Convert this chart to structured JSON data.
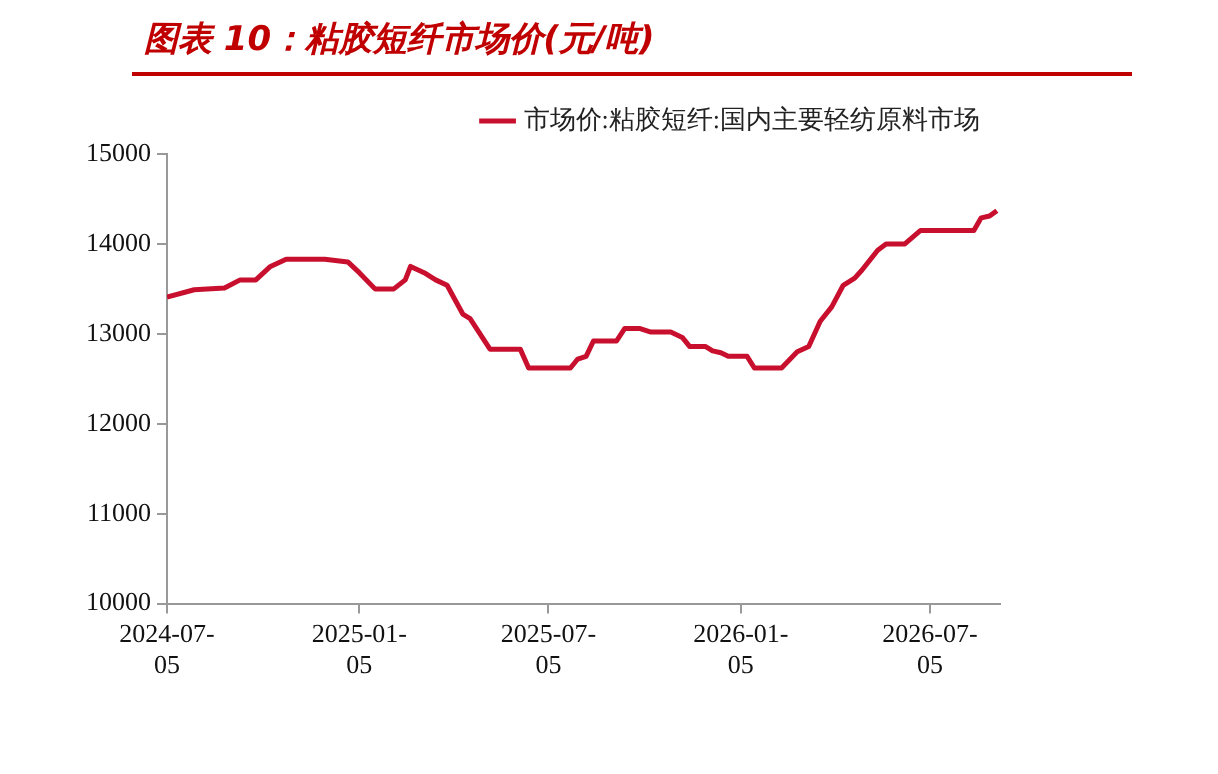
{
  "chart_data": {
    "type": "line",
    "title": "图表 10：粘胶短纤市场价(元/吨)",
    "x": [
      "2024-07-05",
      "2024-07-31",
      "2024-08-29",
      "2024-09-13",
      "2024-09-28",
      "2024-10-12",
      "2024-10-27",
      "2024-12-03",
      "2024-12-25",
      "2025-01-05",
      "2025-01-20",
      "2025-02-07",
      "2025-02-18",
      "2025-02-23",
      "2025-03-08",
      "2025-03-19",
      "2025-03-30",
      "2025-04-14",
      "2025-04-21",
      "2025-05-10",
      "2025-06-08",
      "2025-06-16",
      "2025-07-26",
      "2025-08-02",
      "2025-08-10",
      "2025-08-17",
      "2025-09-08",
      "2025-09-16",
      "2025-09-30",
      "2025-10-11",
      "2025-10-30",
      "2025-11-10",
      "2025-11-17",
      "2025-12-02",
      "2025-12-09",
      "2025-12-17",
      "2025-12-24",
      "2026-01-11",
      "2026-01-18",
      "2026-02-13",
      "2026-02-28",
      "2026-03-11",
      "2026-03-22",
      "2026-04-02",
      "2026-04-13",
      "2026-04-24",
      "2026-05-01",
      "2026-05-16",
      "2026-05-24",
      "2026-06-11",
      "2026-06-26",
      "2026-08-16",
      "2026-08-23",
      "2026-08-31",
      "2026-09-07"
    ],
    "series": [
      {
        "name": "市场价:粘胶短纤:国内主要轻纺原料市场",
        "color": "#c8102e",
        "values": [
          13410,
          13490,
          13510,
          13600,
          13600,
          13750,
          13830,
          13830,
          13800,
          13680,
          13500,
          13500,
          13600,
          13750,
          13680,
          13600,
          13540,
          13220,
          13170,
          12830,
          12830,
          12620,
          12620,
          12720,
          12750,
          12920,
          12920,
          13060,
          13060,
          13020,
          13020,
          12960,
          12860,
          12860,
          12810,
          12790,
          12750,
          12750,
          12620,
          12620,
          12800,
          12860,
          13140,
          13300,
          13540,
          13620,
          13710,
          13930,
          14000,
          14000,
          14150,
          14150,
          14290,
          14310,
          14370
        ]
      }
    ],
    "xlim": [
      "2024-07-05",
      "2026-09-10"
    ],
    "xticks": [
      "2024-07-05",
      "2025-01-05",
      "2025-07-05",
      "2026-01-05",
      "2026-07-05"
    ],
    "ylim": [
      10000,
      15000
    ],
    "yticks": [
      10000,
      11000,
      12000,
      13000,
      14000,
      15000
    ],
    "grid": false,
    "legend": "top right",
    "marker": "none",
    "line_style": "solid"
  }
}
